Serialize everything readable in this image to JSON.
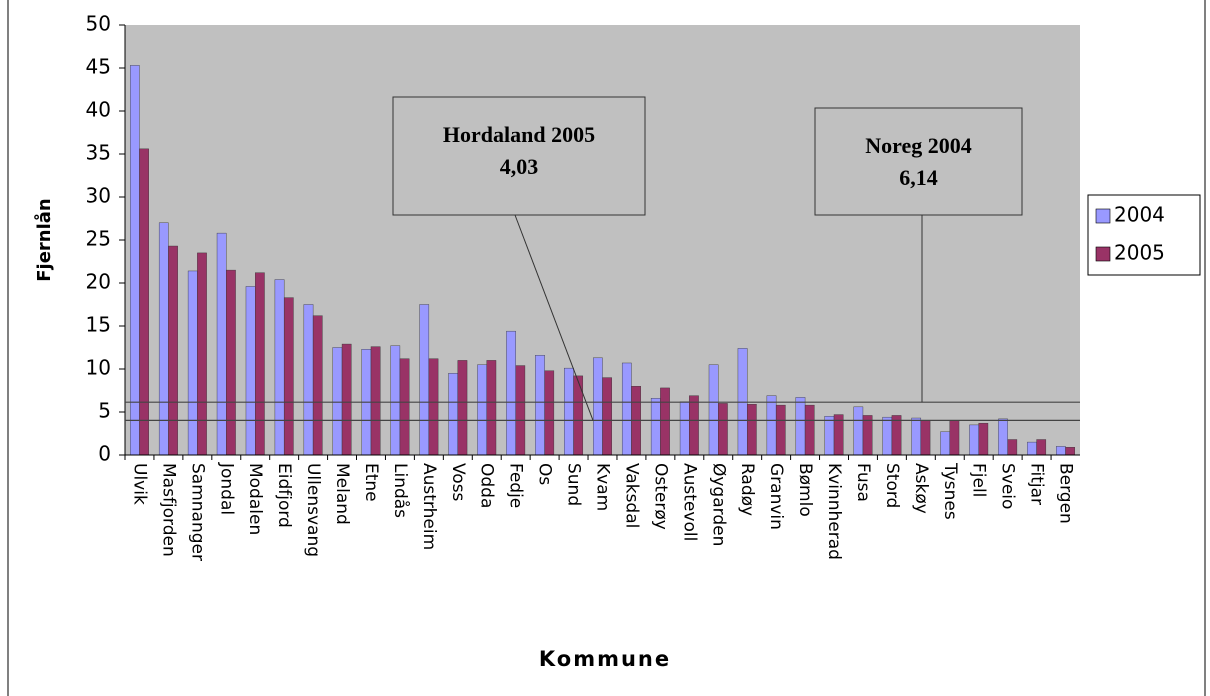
{
  "chart_data": {
    "type": "bar",
    "x_label": "Kommune",
    "y_label": "Fjernlån",
    "categories": [
      "Ulvik",
      "Masfjorden",
      "Samnanger",
      "Jondal",
      "Modalen",
      "Eidfjord",
      "Ullensvang",
      "Meland",
      "Etne",
      "Lindås",
      "Austrheim",
      "Voss",
      "Odda",
      "Fedje",
      "Os",
      "Sund",
      "Kvam",
      "Vaksdal",
      "Osterøy",
      "Austevoll",
      "Øygarden",
      "Radøy",
      "Granvin",
      "Bømlo",
      "Kvinnherad",
      "Fusa",
      "Stord",
      "Askøy",
      "Tysnes",
      "Fjell",
      "Sveio",
      "Fitjar",
      "Bergen"
    ],
    "series": [
      {
        "name": "2004",
        "color": "#9999ff",
        "values": [
          45.3,
          27,
          21.4,
          25.8,
          19.6,
          20.4,
          17.5,
          12.5,
          12.3,
          12.7,
          17.5,
          9.5,
          10.5,
          14.4,
          11.6,
          10.1,
          11.3,
          10.7,
          6.6,
          6.2,
          10.5,
          12.4,
          6.9,
          6.7,
          4.5,
          5.6,
          4.4,
          4.3,
          2.7,
          3.5,
          4.2,
          1.5,
          1.0
        ]
      },
      {
        "name": "2005",
        "color": "#993366",
        "values": [
          35.6,
          24.3,
          23.5,
          21.5,
          21.2,
          18.3,
          16.2,
          12.9,
          12.6,
          11.2,
          11.2,
          11.0,
          11.0,
          10.4,
          9.8,
          9.2,
          9.0,
          8.0,
          7.8,
          6.9,
          6.0,
          5.9,
          5.8,
          5.8,
          4.7,
          4.6,
          4.6,
          4.0,
          4.0,
          3.7,
          1.8,
          1.8,
          0.9
        ]
      }
    ],
    "annotations": [
      {
        "text": "Hordaland 2005",
        "value": 4.03,
        "value_label": "4,03"
      },
      {
        "text": "Noreg 2004",
        "value": 6.14,
        "value_label": "6,14"
      }
    ],
    "ylim": [
      0,
      50
    ],
    "yticks": [
      0,
      5,
      10,
      15,
      20,
      25,
      30,
      35,
      40,
      45,
      50
    ],
    "legend": "right"
  }
}
